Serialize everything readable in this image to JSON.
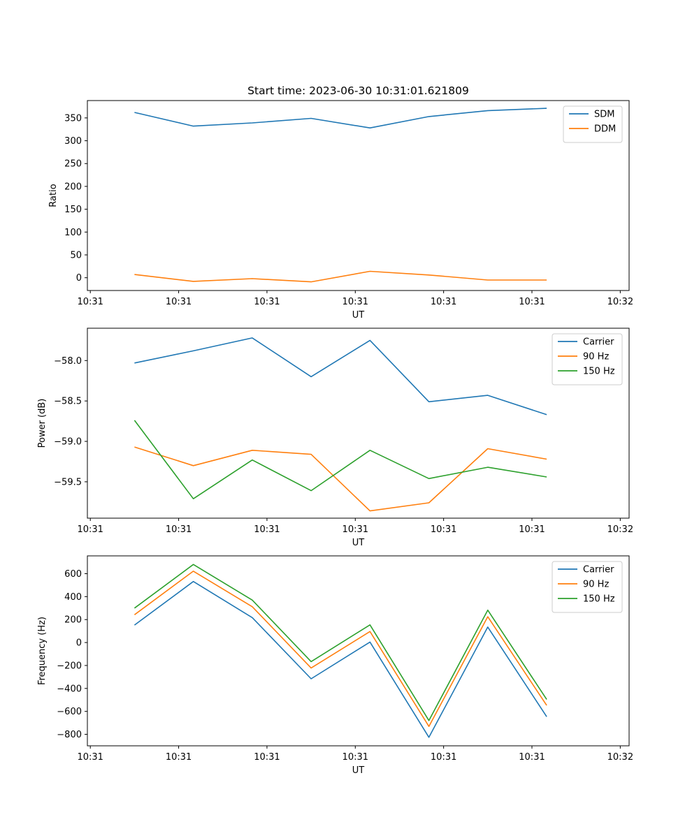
{
  "figure": {
    "title": "Start time: 2023-06-30 10:31:01.621809"
  },
  "chart_data": [
    {
      "type": "line",
      "title": "Start time: 2023-06-30 10:31:01.621809",
      "xlabel": "UT",
      "ylabel": "Ratio",
      "x": [
        1,
        2,
        3,
        4,
        5,
        6,
        7,
        8
      ],
      "x_ticks": [
        "10:31",
        "10:31",
        "10:31",
        "10:31",
        "10:31",
        "10:31",
        "10:32"
      ],
      "y_ticks": [
        0,
        50,
        100,
        150,
        200,
        250,
        300,
        350
      ],
      "ylim": [
        -28,
        388
      ],
      "legend_position": "top-right",
      "series": [
        {
          "name": "SDM",
          "color": "#1f77b4",
          "values": [
            362,
            332,
            339,
            349,
            328,
            353,
            366,
            371
          ]
        },
        {
          "name": "DDM",
          "color": "#ff7f0e",
          "values": [
            7,
            -8,
            -2,
            -9,
            14,
            6,
            -5,
            -5
          ]
        }
      ]
    },
    {
      "type": "line",
      "title": "",
      "xlabel": "UT",
      "ylabel": "Power (dB)",
      "x": [
        1,
        2,
        3,
        4,
        5,
        6,
        7,
        8
      ],
      "x_ticks": [
        "10:31",
        "10:31",
        "10:31",
        "10:31",
        "10:31",
        "10:31",
        "10:32"
      ],
      "y_ticks": [
        -58.0,
        -58.5,
        -59.0,
        -59.5
      ],
      "y_tick_labels": [
        "−58.0",
        "−58.5",
        "−59.0",
        "−59.5"
      ],
      "ylim": [
        -59.95,
        -57.6
      ],
      "legend_position": "top-right",
      "series": [
        {
          "name": "Carrier",
          "color": "#1f77b4",
          "values": [
            -58.03,
            -57.88,
            -57.72,
            -58.2,
            -57.75,
            -58.51,
            -58.43,
            -58.67
          ]
        },
        {
          "name": "90 Hz",
          "color": "#ff7f0e",
          "values": [
            -59.07,
            -59.3,
            -59.11,
            -59.16,
            -59.86,
            -59.76,
            -59.09,
            -59.22
          ]
        },
        {
          "name": "150 Hz",
          "color": "#2ca02c",
          "values": [
            -58.74,
            -59.71,
            -59.23,
            -59.61,
            -59.11,
            -59.46,
            -59.32,
            -59.44
          ]
        }
      ]
    },
    {
      "type": "line",
      "title": "",
      "xlabel": "UT",
      "ylabel": "Frequency (Hz)",
      "x": [
        1,
        2,
        3,
        4,
        5,
        6,
        7,
        8
      ],
      "x_ticks": [
        "10:31",
        "10:31",
        "10:31",
        "10:31",
        "10:31",
        "10:31",
        "10:32"
      ],
      "y_ticks": [
        600,
        400,
        200,
        0,
        -200,
        -400,
        -600,
        -800
      ],
      "y_tick_labels": [
        "600",
        "400",
        "200",
        "0",
        "−200",
        "−400",
        "−600",
        "−800"
      ],
      "ylim": [
        -900,
        755
      ],
      "legend_position": "top-right",
      "series": [
        {
          "name": "Carrier",
          "color": "#1f77b4",
          "values": [
            152,
            532,
            217,
            -316,
            4,
            -826,
            135,
            -646
          ]
        },
        {
          "name": "90 Hz",
          "color": "#ff7f0e",
          "values": [
            242,
            622,
            312,
            -222,
            96,
            -731,
            225,
            -548
          ]
        },
        {
          "name": "150 Hz",
          "color": "#2ca02c",
          "values": [
            300,
            680,
            370,
            -166,
            154,
            -680,
            282,
            -496
          ]
        }
      ]
    }
  ]
}
